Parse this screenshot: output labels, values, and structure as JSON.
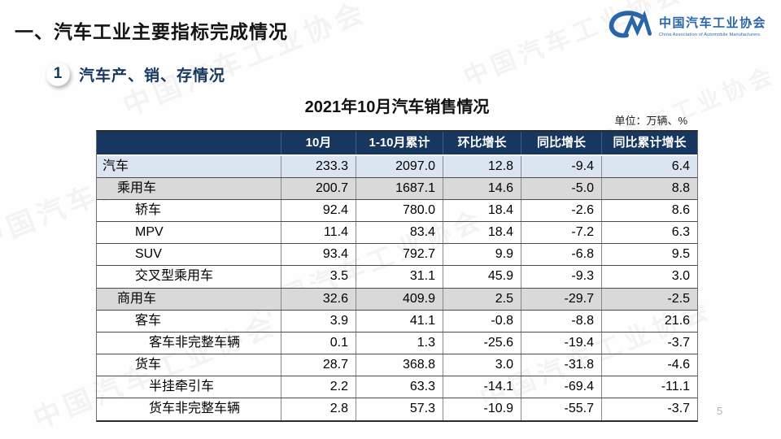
{
  "slide": {
    "title": "一、汽车工业主要指标完成情况",
    "section_number": "1",
    "section_title": "汽车产、销、存情况",
    "table_title": "2021年10月汽车销售情况",
    "unit_note": "单位：万辆、%",
    "page_number": "5",
    "watermark_text": "中国汽车工业协会"
  },
  "logo": {
    "monogram": "CM",
    "name_cn": "中国汽车工业协会",
    "name_en": "China Association of Automobile Manufacturers"
  },
  "colors": {
    "header_bg": "#17375e",
    "row_blue": "#dbe5f1",
    "row_gray": "#d9d9d9",
    "accent_blue": "#17375e",
    "logo_blue": "#2a65a8"
  },
  "chart_data": {
    "type": "table",
    "title": "2021年10月汽车销售情况",
    "unit": "万辆、%",
    "headers": [
      "",
      "10月",
      "1-10月累计",
      "环比增长",
      "同比增长",
      "同比累计增长"
    ],
    "rows": [
      {
        "label": "汽车",
        "indent": 0,
        "bg": "blue",
        "values": [
          "233.3",
          "2097.0",
          "12.8",
          "-9.4",
          "6.4"
        ]
      },
      {
        "label": "乘用车",
        "indent": 1,
        "bg": "gray",
        "values": [
          "200.7",
          "1687.1",
          "14.6",
          "-5.0",
          "8.8"
        ]
      },
      {
        "label": "轿车",
        "indent": 2,
        "bg": "none",
        "values": [
          "92.4",
          "780.0",
          "18.4",
          "-2.6",
          "8.6"
        ]
      },
      {
        "label": "MPV",
        "indent": 2,
        "bg": "none",
        "values": [
          "11.4",
          "83.4",
          "18.4",
          "-7.2",
          "6.3"
        ]
      },
      {
        "label": "SUV",
        "indent": 2,
        "bg": "none",
        "values": [
          "93.4",
          "792.7",
          "9.9",
          "-6.8",
          "9.5"
        ]
      },
      {
        "label": "交叉型乘用车",
        "indent": 2,
        "bg": "none",
        "values": [
          "3.5",
          "31.1",
          "45.9",
          "-9.3",
          "3.0"
        ]
      },
      {
        "label": "商用车",
        "indent": 1,
        "bg": "gray",
        "values": [
          "32.6",
          "409.9",
          "2.5",
          "-29.7",
          "-2.5"
        ]
      },
      {
        "label": "客车",
        "indent": 2,
        "bg": "none",
        "values": [
          "3.9",
          "41.1",
          "-0.8",
          "-8.8",
          "21.6"
        ]
      },
      {
        "label": "客车非完整车辆",
        "indent": 3,
        "bg": "none",
        "values": [
          "0.1",
          "1.3",
          "-25.6",
          "-19.4",
          "-3.7"
        ]
      },
      {
        "label": "货车",
        "indent": 2,
        "bg": "none",
        "values": [
          "28.7",
          "368.8",
          "3.0",
          "-31.8",
          "-4.6"
        ]
      },
      {
        "label": "半挂牵引车",
        "indent": 3,
        "bg": "none",
        "values": [
          "2.2",
          "63.3",
          "-14.1",
          "-69.4",
          "-11.1"
        ]
      },
      {
        "label": "货车非完整车辆",
        "indent": 3,
        "bg": "none",
        "values": [
          "2.8",
          "57.3",
          "-10.9",
          "-55.7",
          "-3.7"
        ]
      }
    ]
  }
}
